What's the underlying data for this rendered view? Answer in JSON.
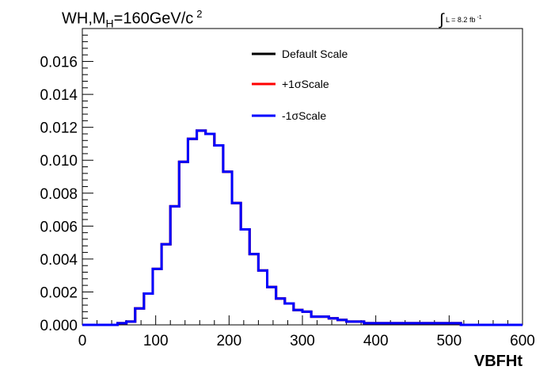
{
  "chart_data": {
    "type": "histogram",
    "title_main": "WH,M",
    "title_sub": "H",
    "title_rest": "=160GeV/c",
    "title_sup": "2",
    "lumi_integral": "∫",
    "lumi_text": "L = 8.2 fb",
    "lumi_sup": "-1",
    "xlabel": "VBFHt",
    "ylabel": "",
    "xlim": [
      0,
      600
    ],
    "ylim": [
      0,
      0.018
    ],
    "x_ticks": [
      0,
      100,
      200,
      300,
      400,
      500,
      600
    ],
    "x_tick_labels": [
      "0",
      "100",
      "200",
      "300",
      "400",
      "500",
      "600"
    ],
    "y_ticks": [
      0,
      0.002,
      0.004,
      0.006,
      0.008,
      0.01,
      0.012,
      0.014,
      0.016
    ],
    "y_tick_labels": [
      "0.000",
      "0.002",
      "0.004",
      "0.006",
      "0.008",
      "0.010",
      "0.012",
      "0.014",
      "0.016"
    ],
    "bin_width": 12,
    "bin_edges_start": 0,
    "series": [
      {
        "name": "Default Scale",
        "color": "#000000",
        "values": [
          0,
          0,
          0,
          0,
          0.0001,
          0.0002,
          0.001,
          0.0019,
          0.0034,
          0.0049,
          0.0072,
          0.0099,
          0.0113,
          0.0118,
          0.0116,
          0.0109,
          0.0093,
          0.0074,
          0.0058,
          0.0043,
          0.0033,
          0.0023,
          0.0016,
          0.0013,
          0.0009,
          0.0008,
          0.0005,
          0.0005,
          0.0004,
          0.0003,
          0.0002,
          0.0002,
          0.0001,
          0.0001,
          0.0001,
          0.0001,
          0.0001,
          0.0001,
          0.0001,
          0.0001,
          0.0001,
          0.0001,
          0.0001,
          0,
          0,
          0,
          0,
          0,
          0,
          0
        ]
      },
      {
        "name": "+1σScale",
        "color": "#ff0000",
        "values": [
          0,
          0,
          0,
          0,
          0.0001,
          0.0002,
          0.001,
          0.0019,
          0.0034,
          0.0049,
          0.0072,
          0.0099,
          0.0113,
          0.0118,
          0.0116,
          0.0109,
          0.0093,
          0.0074,
          0.0058,
          0.0043,
          0.0033,
          0.0023,
          0.0016,
          0.0013,
          0.0009,
          0.0008,
          0.0005,
          0.0005,
          0.0004,
          0.0003,
          0.0002,
          0.0002,
          0.0001,
          0.0001,
          0.0001,
          0.0001,
          0.0001,
          0.0001,
          0.0001,
          0.0001,
          0.0001,
          0.0001,
          0.0001,
          0,
          0,
          0,
          0,
          0,
          0,
          0
        ]
      },
      {
        "name": "-1σScale",
        "color": "#0000ff",
        "values": [
          0,
          0,
          0,
          0,
          0.0001,
          0.0002,
          0.001,
          0.0019,
          0.0034,
          0.0049,
          0.0072,
          0.0099,
          0.0113,
          0.0118,
          0.0116,
          0.0109,
          0.0093,
          0.0074,
          0.0058,
          0.0043,
          0.0033,
          0.0023,
          0.0016,
          0.0013,
          0.0009,
          0.0008,
          0.0005,
          0.0005,
          0.0004,
          0.0003,
          0.0002,
          0.0002,
          0.0001,
          0.0001,
          0.0001,
          0.0001,
          0.0001,
          0.0001,
          0.0001,
          0.0001,
          0.0001,
          0.0001,
          0.0001,
          0,
          0,
          0,
          0,
          0,
          0,
          0
        ]
      }
    ],
    "legend_position": "top-center",
    "grid": false
  }
}
